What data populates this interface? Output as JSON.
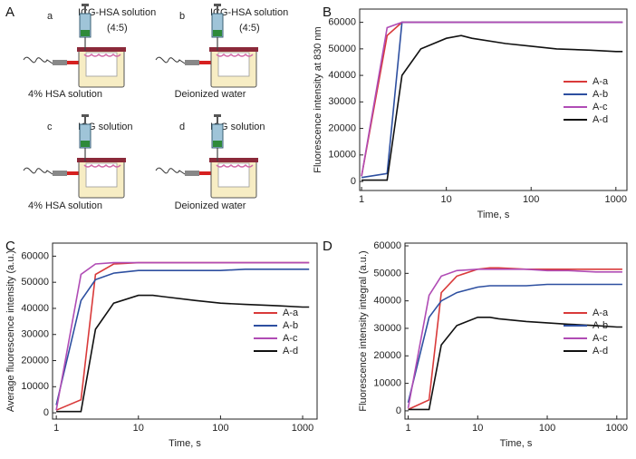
{
  "panel_labels": [
    "A",
    "B",
    "C",
    "D"
  ],
  "diagram": {
    "setups": [
      {
        "letter": "a",
        "injection": "ICG-HSA solution",
        "ratio": "(4:5)",
        "medium": "4% HSA solution"
      },
      {
        "letter": "b",
        "injection": "ICG-HSA solution",
        "ratio": "(4:5)",
        "medium": "Deionized water"
      },
      {
        "letter": "c",
        "injection": "ICG solution",
        "medium": "4% HSA solution"
      },
      {
        "letter": "d",
        "injection": "ICG solution",
        "medium": "Deionized water"
      }
    ]
  },
  "chart_data": [
    {
      "type": "line",
      "xlabel": "Time, s",
      "ylabel": "Fluorescence intensity at 830 nm",
      "xscale": "log",
      "xlim": [
        0.95,
        1350
      ],
      "ylim": [
        -3400,
        65000
      ],
      "xticks": [
        1,
        10,
        100,
        1000
      ],
      "yticks": [
        0,
        10000,
        20000,
        30000,
        40000,
        50000,
        60000
      ],
      "legend": "center right",
      "x": [
        1,
        2,
        3,
        5,
        10,
        15,
        20,
        50,
        100,
        200,
        500,
        1000,
        1200
      ],
      "series": [
        {
          "name": "A-a",
          "color": "#d93a3a",
          "values": [
            2000,
            55000,
            60000,
            60000,
            60000,
            60000,
            60000,
            60000,
            60000,
            60000,
            60000,
            60000,
            60000
          ]
        },
        {
          "name": "A-b",
          "color": "#2d4fa0",
          "values": [
            1500,
            3000,
            60000,
            60000,
            60000,
            60000,
            60000,
            60000,
            60000,
            60000,
            60000,
            60000,
            60000
          ]
        },
        {
          "name": "A-c",
          "color": "#b04cb5",
          "values": [
            2000,
            58000,
            60000,
            60000,
            60000,
            60000,
            60000,
            60000,
            60000,
            60000,
            60000,
            60000,
            60000
          ]
        },
        {
          "name": "A-d",
          "color": "#111111",
          "values": [
            500,
            500,
            40000,
            50000,
            54000,
            55000,
            54000,
            52000,
            51000,
            50000,
            49500,
            49000,
            49000
          ]
        }
      ]
    },
    {
      "type": "line",
      "xlabel": "Time, s",
      "ylabel": "Average fluorescence intensity (a.u.)",
      "xscale": "log",
      "xlim": [
        0.9,
        1500
      ],
      "ylim": [
        -2400,
        65000
      ],
      "xticks": [
        1,
        10,
        100,
        1000
      ],
      "yticks": [
        0,
        10000,
        20000,
        30000,
        40000,
        50000,
        60000
      ],
      "legend": "center right",
      "x": [
        1,
        2,
        3,
        5,
        10,
        15,
        20,
        50,
        100,
        200,
        500,
        1000,
        1200
      ],
      "series": [
        {
          "name": "A-a",
          "color": "#d93a3a",
          "values": [
            1000,
            5000,
            53000,
            57000,
            57500,
            57500,
            57500,
            57500,
            57500,
            57500,
            57500,
            57500,
            57500
          ]
        },
        {
          "name": "A-b",
          "color": "#2d4fa0",
          "values": [
            3000,
            43000,
            51000,
            53500,
            54500,
            54500,
            54500,
            54500,
            54500,
            55000,
            55000,
            55000,
            55000
          ]
        },
        {
          "name": "A-c",
          "color": "#b04cb5",
          "values": [
            1000,
            53000,
            57000,
            57500,
            57500,
            57500,
            57500,
            57500,
            57500,
            57500,
            57500,
            57500,
            57500
          ]
        },
        {
          "name": "A-d",
          "color": "#111111",
          "values": [
            500,
            500,
            32000,
            42000,
            45000,
            45000,
            44500,
            43000,
            42000,
            41500,
            41000,
            40500,
            40500
          ]
        }
      ]
    },
    {
      "type": "line",
      "xlabel": "Time, s",
      "ylabel": "Fluorescence intensity integral (a.u.)",
      "xscale": "log",
      "xlim": [
        0.9,
        1400
      ],
      "ylim": [
        -3000,
        61000
      ],
      "xticks": [
        1,
        10,
        100,
        1000
      ],
      "yticks": [
        0,
        10000,
        20000,
        30000,
        40000,
        50000,
        60000
      ],
      "legend": "center right",
      "x": [
        1,
        2,
        3,
        5,
        10,
        15,
        20,
        50,
        100,
        200,
        500,
        1000,
        1200
      ],
      "series": [
        {
          "name": "A-a",
          "color": "#d93a3a",
          "values": [
            500,
            4000,
            43000,
            49000,
            51500,
            52000,
            52000,
            51500,
            51500,
            51500,
            51500,
            51500,
            51500
          ]
        },
        {
          "name": "A-b",
          "color": "#2d4fa0",
          "values": [
            3000,
            34000,
            40000,
            43000,
            45000,
            45500,
            45500,
            45500,
            46000,
            46000,
            46000,
            46000,
            46000
          ]
        },
        {
          "name": "A-c",
          "color": "#b04cb5",
          "values": [
            1000,
            42000,
            49000,
            51000,
            51500,
            51500,
            51500,
            51500,
            51000,
            51000,
            50500,
            50500,
            50500
          ]
        },
        {
          "name": "A-d",
          "color": "#111111",
          "values": [
            500,
            500,
            24000,
            31000,
            34000,
            34000,
            33500,
            32500,
            32000,
            31500,
            31000,
            30500,
            30500
          ]
        }
      ]
    }
  ]
}
